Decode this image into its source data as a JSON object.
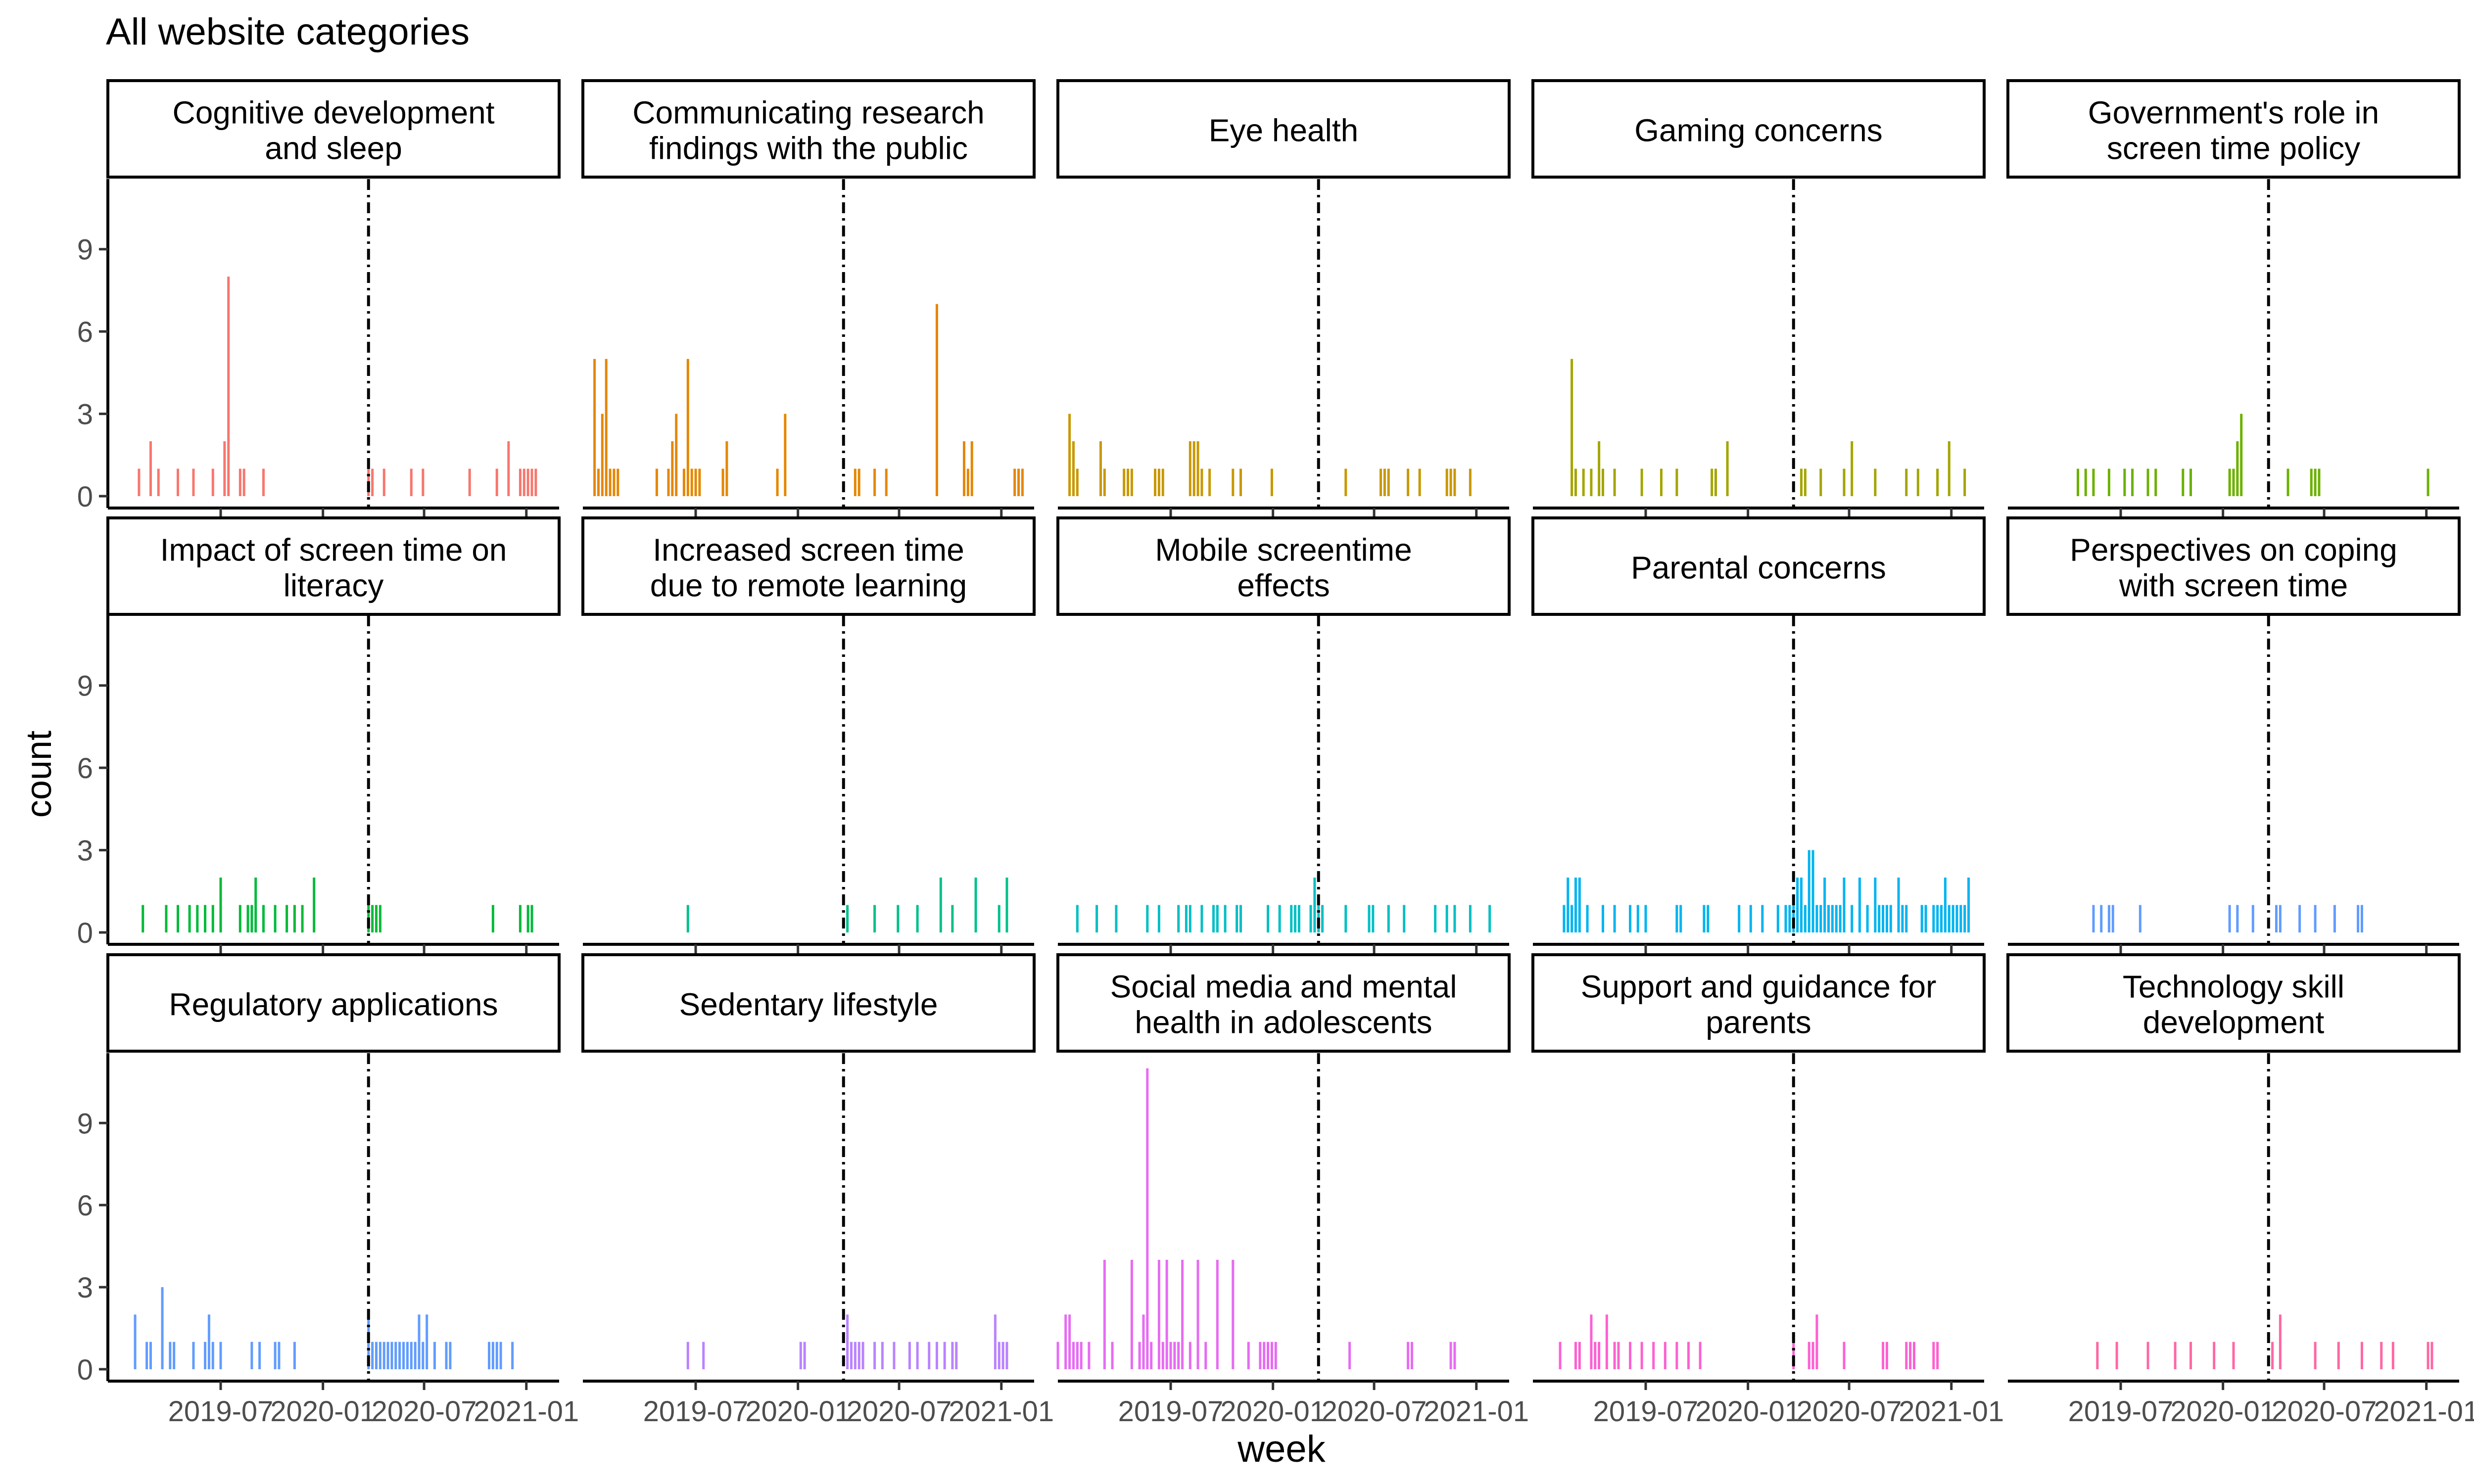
{
  "title": "All website categories",
  "xlabel": "week",
  "ylabel": "count",
  "chart_data": {
    "type": "bar",
    "title": "All website categories",
    "xlabel": "week",
    "ylabel": "count",
    "x_tick_labels": [
      "2019-07",
      "2020-01",
      "2020-07",
      "2021-01"
    ],
    "y_ticks": [
      0,
      3,
      6,
      9
    ],
    "ylim": [
      0,
      11.5
    ],
    "xlim": [
      "2018-12-10",
      "2021-03-01"
    ],
    "reference_line": "2020-03-23",
    "reference_line_style": "dashed",
    "grid": false,
    "panels": [
      {
        "name": "Cognitive development\nand sleep",
        "color": "#F8766D",
        "x": [
          "2019-02-04",
          "2019-02-25",
          "2019-03-11",
          "2019-04-15",
          "2019-05-13",
          "2019-06-17",
          "2019-07-08",
          "2019-07-15",
          "2019-08-05",
          "2019-08-12",
          "2019-09-16",
          "2020-03-23",
          "2020-03-30",
          "2020-04-20",
          "2020-06-08",
          "2020-06-29",
          "2020-09-21",
          "2020-11-09",
          "2020-11-30",
          "2020-12-21",
          "2020-12-28",
          "2021-01-04",
          "2021-01-11",
          "2021-01-18"
        ],
        "y": [
          1,
          2,
          1,
          1,
          1,
          1,
          2,
          8,
          1,
          1,
          1,
          1,
          1,
          1,
          1,
          1,
          1,
          1,
          2,
          1,
          1,
          1,
          1,
          1
        ]
      },
      {
        "name": "Communicating research\nfindings with the public",
        "color": "#E58700",
        "x": [
          "2018-12-31",
          "2019-01-07",
          "2019-01-14",
          "2019-01-21",
          "2019-01-28",
          "2019-02-04",
          "2019-02-11",
          "2019-04-22",
          "2019-05-13",
          "2019-05-20",
          "2019-05-27",
          "2019-06-10",
          "2019-06-17",
          "2019-06-24",
          "2019-07-01",
          "2019-07-08",
          "2019-08-19",
          "2019-08-26",
          "2019-11-25",
          "2019-12-09",
          "2020-04-13",
          "2020-04-20",
          "2020-05-18",
          "2020-06-08",
          "2020-09-07",
          "2020-10-26",
          "2020-11-02",
          "2020-11-09",
          "2021-01-25",
          "2021-02-01",
          "2021-02-08"
        ],
        "y": [
          5,
          1,
          3,
          5,
          1,
          1,
          1,
          1,
          1,
          2,
          3,
          1,
          5,
          1,
          1,
          1,
          1,
          2,
          1,
          3,
          1,
          1,
          1,
          1,
          7,
          2,
          1,
          2,
          1,
          1,
          1
        ]
      },
      {
        "name": "Eye health",
        "color": "#C99800",
        "x": [
          "2018-12-31",
          "2019-01-07",
          "2019-01-14",
          "2019-02-25",
          "2019-03-04",
          "2019-04-08",
          "2019-04-15",
          "2019-04-22",
          "2019-06-03",
          "2019-06-10",
          "2019-06-17",
          "2019-08-05",
          "2019-08-12",
          "2019-08-19",
          "2019-08-26",
          "2019-09-09",
          "2019-10-21",
          "2019-11-04",
          "2019-12-30",
          "2020-05-11",
          "2020-07-13",
          "2020-07-20",
          "2020-07-27",
          "2020-08-31",
          "2020-09-21",
          "2020-11-09",
          "2020-11-16",
          "2020-11-23",
          "2020-12-21"
        ],
        "y": [
          3,
          2,
          1,
          2,
          1,
          1,
          1,
          1,
          1,
          1,
          1,
          2,
          2,
          2,
          1,
          1,
          1,
          1,
          1,
          1,
          1,
          1,
          1,
          1,
          1,
          1,
          1,
          1,
          1
        ]
      },
      {
        "name": "Gaming concerns",
        "color": "#A3A500",
        "x": [
          "2019-02-18",
          "2019-02-25",
          "2019-03-11",
          "2019-03-25",
          "2019-04-08",
          "2019-04-15",
          "2019-05-06",
          "2019-06-24",
          "2019-07-29",
          "2019-08-26",
          "2019-10-28",
          "2019-11-04",
          "2019-11-25",
          "2020-04-06",
          "2020-04-13",
          "2020-05-11",
          "2020-06-22",
          "2020-07-06",
          "2020-08-17",
          "2020-10-12",
          "2020-11-02",
          "2020-12-07",
          "2020-12-28",
          "2021-01-25"
        ],
        "y": [
          5,
          1,
          1,
          1,
          2,
          1,
          1,
          1,
          1,
          1,
          1,
          1,
          2,
          1,
          1,
          1,
          1,
          2,
          1,
          1,
          1,
          1,
          2,
          1
        ]
      },
      {
        "name": "Government's role in\nscreen time policy",
        "color": "#6BB100",
        "x": [
          "2019-04-15",
          "2019-04-29",
          "2019-05-13",
          "2019-06-10",
          "2019-07-08",
          "2019-07-22",
          "2019-08-19",
          "2019-09-02",
          "2019-10-21",
          "2019-11-04",
          "2020-01-13",
          "2020-01-20",
          "2020-01-27",
          "2020-02-03",
          "2020-04-27",
          "2020-06-08",
          "2020-06-15",
          "2020-06-22",
          "2021-01-04"
        ],
        "y": [
          1,
          1,
          1,
          1,
          1,
          1,
          1,
          1,
          1,
          1,
          1,
          1,
          2,
          3,
          1,
          1,
          1,
          1,
          1
        ]
      },
      {
        "name": "Impact of screen time on\nliteracy",
        "color": "#00BA38",
        "x": [
          "2019-02-11",
          "2019-03-25",
          "2019-04-15",
          "2019-05-06",
          "2019-05-20",
          "2019-06-03",
          "2019-06-17",
          "2019-07-01",
          "2019-08-05",
          "2019-08-19",
          "2019-08-26",
          "2019-09-02",
          "2019-09-16",
          "2019-10-07",
          "2019-10-28",
          "2019-11-11",
          "2019-11-25",
          "2019-12-16",
          "2020-03-23",
          "2020-03-30",
          "2020-04-06",
          "2020-04-13",
          "2020-11-02",
          "2020-12-21",
          "2021-01-04",
          "2021-01-11"
        ],
        "y": [
          1,
          1,
          1,
          1,
          1,
          1,
          1,
          2,
          1,
          1,
          1,
          2,
          1,
          1,
          1,
          1,
          1,
          2,
          1,
          1,
          1,
          1,
          1,
          1,
          1,
          1
        ]
      },
      {
        "name": "Increased screen time\ndue to remote learning",
        "color": "#00C08B",
        "x": [
          "2019-06-17",
          "2020-03-30",
          "2020-05-18",
          "2020-06-29",
          "2020-08-03",
          "2020-09-14",
          "2020-10-05",
          "2020-11-16",
          "2020-12-28",
          "2021-01-11"
        ],
        "y": [
          1,
          1,
          1,
          1,
          1,
          2,
          1,
          2,
          1,
          2
        ]
      },
      {
        "name": "Mobile screentime\neffects",
        "color": "#00BFC4",
        "x": [
          "2019-01-14",
          "2019-02-18",
          "2019-03-25",
          "2019-05-20",
          "2019-06-10",
          "2019-07-15",
          "2019-07-29",
          "2019-08-05",
          "2019-08-26",
          "2019-09-16",
          "2019-09-23",
          "2019-10-07",
          "2019-10-28",
          "2019-11-04",
          "2019-12-23",
          "2020-01-13",
          "2020-02-03",
          "2020-02-10",
          "2020-02-17",
          "2020-03-09",
          "2020-03-16",
          "2020-03-23",
          "2020-03-30",
          "2020-05-11",
          "2020-06-22",
          "2020-06-29",
          "2020-07-27",
          "2020-08-24",
          "2020-10-19",
          "2020-11-09",
          "2020-11-23",
          "2020-12-21",
          "2021-01-25"
        ],
        "y": [
          1,
          1,
          1,
          1,
          1,
          1,
          1,
          1,
          1,
          1,
          1,
          1,
          1,
          1,
          1,
          1,
          1,
          1,
          1,
          1,
          2,
          1,
          1,
          1,
          1,
          1,
          1,
          1,
          1,
          1,
          1,
          1,
          1
        ]
      },
      {
        "name": "Parental concerns",
        "color": "#00B4F0",
        "x": [
          "2019-02-04",
          "2019-02-11",
          "2019-02-18",
          "2019-02-25",
          "2019-03-04",
          "2019-03-18",
          "2019-04-15",
          "2019-05-06",
          "2019-06-03",
          "2019-06-17",
          "2019-07-01",
          "2019-08-26",
          "2019-09-02",
          "2019-10-14",
          "2019-10-21",
          "2019-12-16",
          "2020-01-06",
          "2020-01-27",
          "2020-02-24",
          "2020-03-09",
          "2020-03-16",
          "2020-03-23",
          "2020-03-30",
          "2020-04-06",
          "2020-04-13",
          "2020-04-20",
          "2020-04-27",
          "2020-05-04",
          "2020-05-11",
          "2020-05-18",
          "2020-05-25",
          "2020-06-01",
          "2020-06-08",
          "2020-06-15",
          "2020-06-22",
          "2020-07-06",
          "2020-07-20",
          "2020-08-03",
          "2020-08-17",
          "2020-08-24",
          "2020-08-31",
          "2020-09-07",
          "2020-09-14",
          "2020-09-28",
          "2020-10-05",
          "2020-10-12",
          "2020-11-09",
          "2020-11-16",
          "2020-11-30",
          "2020-12-07",
          "2020-12-14",
          "2020-12-21",
          "2020-12-28",
          "2021-01-04",
          "2021-01-11",
          "2021-01-18",
          "2021-01-25",
          "2021-02-01"
        ],
        "y": [
          1,
          2,
          1,
          2,
          2,
          1,
          1,
          1,
          1,
          1,
          1,
          1,
          1,
          1,
          1,
          1,
          1,
          1,
          1,
          1,
          1,
          1,
          2,
          2,
          1,
          3,
          3,
          1,
          1,
          2,
          1,
          1,
          1,
          1,
          2,
          1,
          2,
          1,
          2,
          1,
          1,
          1,
          1,
          2,
          1,
          1,
          1,
          1,
          1,
          1,
          1,
          2,
          1,
          1,
          1,
          1,
          1,
          2
        ]
      },
      {
        "name": "Perspectives on coping\nwith screen time",
        "color": "#619CFF",
        "x": [
          "2019-05-13",
          "2019-05-27",
          "2019-06-10",
          "2019-06-17",
          "2019-08-05",
          "2020-01-13",
          "2020-01-27",
          "2020-02-24",
          "2020-04-06",
          "2020-04-13",
          "2020-05-18",
          "2020-06-15",
          "2020-07-20",
          "2020-08-31",
          "2020-09-07"
        ],
        "y": [
          1,
          1,
          1,
          1,
          1,
          1,
          1,
          1,
          1,
          1,
          1,
          1,
          1,
          1,
          1
        ]
      },
      {
        "name": "Regulatory applications",
        "color": "#619CFF",
        "x": [
          "2019-01-28",
          "2019-02-18",
          "2019-02-25",
          "2019-03-18",
          "2019-04-01",
          "2019-04-08",
          "2019-05-13",
          "2019-06-03",
          "2019-06-10",
          "2019-06-17",
          "2019-07-01",
          "2019-08-26",
          "2019-09-09",
          "2019-10-07",
          "2019-10-14",
          "2019-11-11",
          "2020-03-23",
          "2020-03-30",
          "2020-04-06",
          "2020-04-13",
          "2020-04-20",
          "2020-04-27",
          "2020-05-04",
          "2020-05-11",
          "2020-05-18",
          "2020-05-25",
          "2020-06-01",
          "2020-06-08",
          "2020-06-15",
          "2020-06-22",
          "2020-06-29",
          "2020-07-06",
          "2020-07-20",
          "2020-08-10",
          "2020-08-17",
          "2020-10-26",
          "2020-11-02",
          "2020-11-09",
          "2020-11-16",
          "2020-12-07"
        ],
        "y": [
          2,
          1,
          1,
          3,
          1,
          1,
          1,
          1,
          2,
          1,
          1,
          1,
          1,
          1,
          1,
          1,
          2,
          1,
          1,
          1,
          1,
          1,
          1,
          1,
          1,
          1,
          1,
          1,
          1,
          2,
          1,
          2,
          1,
          1,
          1,
          1,
          1,
          1,
          1,
          1
        ]
      },
      {
        "name": "Sedentary lifestyle",
        "color": "#B983FF",
        "x": [
          "2019-06-17",
          "2019-07-15",
          "2020-01-06",
          "2020-01-13",
          "2020-03-30",
          "2020-04-06",
          "2020-04-13",
          "2020-04-20",
          "2020-04-27",
          "2020-05-18",
          "2020-06-01",
          "2020-06-22",
          "2020-07-20",
          "2020-08-03",
          "2020-08-24",
          "2020-09-07",
          "2020-09-21",
          "2020-10-05",
          "2020-10-12",
          "2020-12-21",
          "2020-12-28",
          "2021-01-04",
          "2021-01-11"
        ],
        "y": [
          1,
          1,
          1,
          1,
          2,
          1,
          1,
          1,
          1,
          1,
          1,
          1,
          1,
          1,
          1,
          1,
          1,
          1,
          1,
          2,
          1,
          1,
          1
        ]
      },
      {
        "name": "Social media and mental\nhealth in adolescents",
        "color": "#E76BF3",
        "x": [
          "2018-12-10",
          "2018-12-24",
          "2018-12-31",
          "2019-01-07",
          "2019-01-14",
          "2019-01-21",
          "2019-02-04",
          "2019-03-04",
          "2019-03-18",
          "2019-04-22",
          "2019-05-06",
          "2019-05-13",
          "2019-05-20",
          "2019-05-27",
          "2019-06-10",
          "2019-06-17",
          "2019-06-24",
          "2019-07-01",
          "2019-07-08",
          "2019-07-15",
          "2019-07-22",
          "2019-08-05",
          "2019-08-19",
          "2019-09-02",
          "2019-09-23",
          "2019-10-21",
          "2019-11-18",
          "2019-12-09",
          "2019-12-16",
          "2019-12-23",
          "2019-12-30",
          "2020-01-06",
          "2020-05-18",
          "2020-08-31",
          "2020-09-07",
          "2020-11-16",
          "2020-11-23"
        ],
        "y": [
          1,
          2,
          2,
          1,
          1,
          1,
          1,
          4,
          1,
          4,
          1,
          2,
          11,
          1,
          4,
          1,
          4,
          1,
          1,
          1,
          4,
          1,
          4,
          1,
          4,
          4,
          1,
          1,
          1,
          1,
          1,
          1,
          1,
          1,
          1,
          1,
          1
        ]
      },
      {
        "name": "Support and guidance for\nparents",
        "color": "#FD61D1",
        "x": [
          "2019-01-28",
          "2019-02-25",
          "2019-03-04",
          "2019-03-25",
          "2019-04-01",
          "2019-04-08",
          "2019-04-22",
          "2019-05-06",
          "2019-05-13",
          "2019-06-03",
          "2019-06-24",
          "2019-07-15",
          "2019-08-05",
          "2019-08-26",
          "2019-09-16",
          "2019-10-07",
          "2020-03-23",
          "2020-04-20",
          "2020-04-27",
          "2020-05-04",
          "2020-06-22",
          "2020-08-31",
          "2020-09-07",
          "2020-10-12",
          "2020-10-19",
          "2020-10-26",
          "2020-11-30",
          "2020-12-07"
        ],
        "y": [
          1,
          1,
          1,
          2,
          1,
          1,
          2,
          1,
          1,
          1,
          1,
          1,
          1,
          1,
          1,
          1,
          1,
          1,
          1,
          2,
          1,
          1,
          1,
          1,
          1,
          1,
          1,
          1
        ]
      },
      {
        "name": "Technology skill\ndevelopment",
        "color": "#FF67A4",
        "x": [
          "2019-05-20",
          "2019-06-24",
          "2019-08-19",
          "2019-10-07",
          "2019-11-04",
          "2019-12-16",
          "2020-01-20",
          "2020-03-30",
          "2020-04-13",
          "2020-06-15",
          "2020-07-27",
          "2020-09-07",
          "2020-10-12",
          "2020-11-02",
          "2021-01-04",
          "2021-01-11"
        ],
        "y": [
          1,
          1,
          1,
          1,
          1,
          1,
          1,
          1,
          2,
          1,
          1,
          1,
          1,
          1,
          1,
          1
        ]
      }
    ]
  }
}
